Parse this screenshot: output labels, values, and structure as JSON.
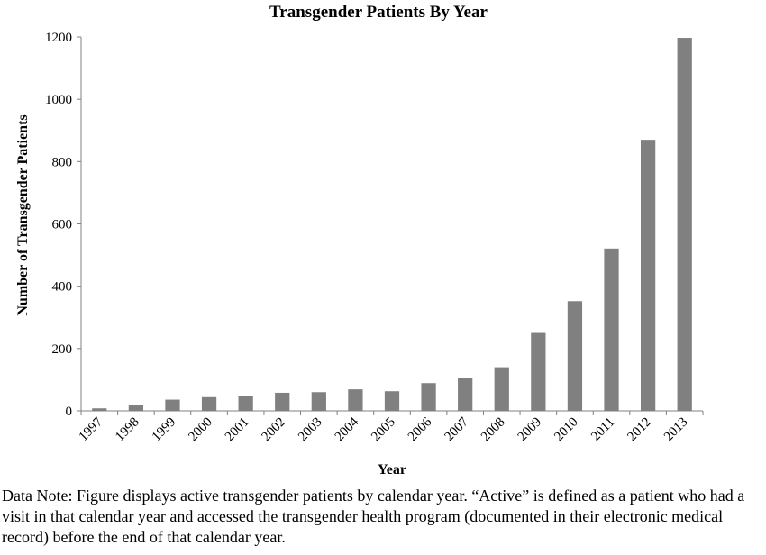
{
  "chart_data": {
    "type": "bar",
    "title": "Transgender Patients By Year",
    "xlabel": "Year",
    "ylabel": "Number of Transgender Patients",
    "categories": [
      "1997",
      "1998",
      "1999",
      "2000",
      "2001",
      "2002",
      "2003",
      "2004",
      "2005",
      "2006",
      "2007",
      "2008",
      "2009",
      "2010",
      "2011",
      "2012",
      "2013"
    ],
    "values": [
      8,
      18,
      36,
      44,
      48,
      58,
      60,
      69,
      63,
      89,
      107,
      140,
      250,
      352,
      521,
      870,
      1197
    ],
    "ylim": [
      0,
      1200
    ],
    "yticks": [
      0,
      200,
      400,
      600,
      800,
      1000,
      1200
    ],
    "bar_color": "#808080",
    "grid": false,
    "legend": "none"
  },
  "note": {
    "text": "Data Note: Figure displays active transgender patients by calendar year. “Active” is defined as a patient who had a visit in that calendar year and accessed the transgender health program (documented in their electronic medical record) before the end of that calendar year."
  }
}
